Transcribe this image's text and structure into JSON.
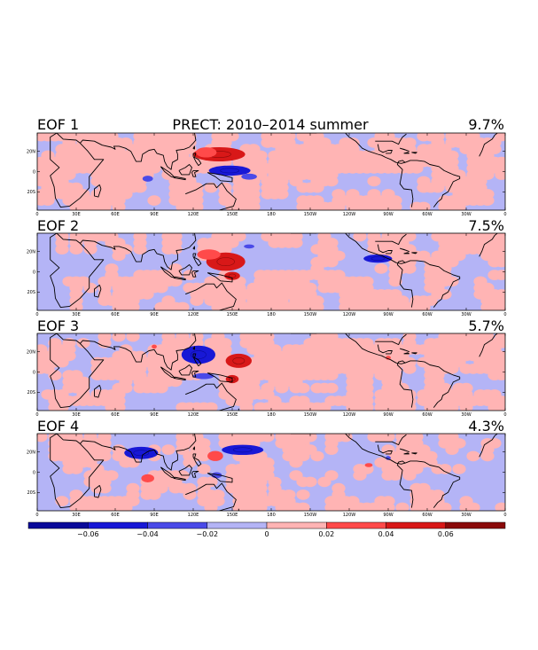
{
  "chart_data": {
    "type": "heatmap",
    "title": "PRECT: 2010–2014 summer",
    "colors": {
      "neg3": "#0a0a9a",
      "neg2": "#1818d6",
      "neg1": "#4a4ae8",
      "neg0": "#b4b4f6",
      "pos0": "#ffb4b4",
      "pos1": "#ff4a4a",
      "pos2": "#d81818",
      "pos3": "#8a0a0a",
      "coast": "#000000"
    },
    "lon_ticks": [
      "0",
      "30E",
      "60E",
      "90E",
      "120E",
      "150E",
      "180",
      "150W",
      "120W",
      "90W",
      "60W",
      "30W",
      "0"
    ],
    "lat_ticks": [
      "20N",
      "0",
      "20S"
    ],
    "panels": [
      {
        "label": "EOF 1",
        "variance": "9.7%",
        "anomalies": [
          {
            "sign": "pos",
            "level": 2,
            "lon": 140,
            "lat": 17,
            "rlon": 20,
            "rlat": 7
          },
          {
            "sign": "pos",
            "level": 1,
            "lon": 130,
            "lat": 19,
            "rlon": 8,
            "rlat": 5
          },
          {
            "sign": "neg",
            "level": 2,
            "lon": 148,
            "lat": 1,
            "rlon": 16,
            "rlat": 5
          },
          {
            "sign": "neg",
            "level": 1,
            "lon": 163,
            "lat": -5,
            "rlon": 6,
            "rlat": 3
          },
          {
            "sign": "neg",
            "level": 1,
            "lon": 85,
            "lat": -7,
            "rlon": 4,
            "rlat": 3
          }
        ]
      },
      {
        "label": "EOF 2",
        "variance": "7.5%",
        "anomalies": [
          {
            "sign": "pos",
            "level": 2,
            "lon": 145,
            "lat": 10,
            "rlon": 15,
            "rlat": 9
          },
          {
            "sign": "pos",
            "level": 1,
            "lon": 132,
            "lat": 17,
            "rlon": 9,
            "rlat": 5
          },
          {
            "sign": "pos",
            "level": 2,
            "lon": 150,
            "lat": -4,
            "rlon": 6,
            "rlat": 4
          },
          {
            "sign": "neg",
            "level": 2,
            "lon": 262,
            "lat": 13,
            "rlon": 11,
            "rlat": 4
          },
          {
            "sign": "neg",
            "level": 1,
            "lon": 163,
            "lat": 25,
            "rlon": 4,
            "rlat": 2
          }
        ]
      },
      {
        "label": "EOF 3",
        "variance": "5.7%",
        "anomalies": [
          {
            "sign": "neg",
            "level": 2,
            "lon": 124,
            "lat": 17,
            "rlon": 13,
            "rlat": 9
          },
          {
            "sign": "neg",
            "level": 1,
            "lon": 128,
            "lat": -4,
            "rlon": 8,
            "rlat": 3
          },
          {
            "sign": "pos",
            "level": 2,
            "lon": 155,
            "lat": 11,
            "rlon": 10,
            "rlat": 7
          },
          {
            "sign": "pos",
            "level": 2,
            "lon": 150,
            "lat": -7,
            "rlon": 5,
            "rlat": 4
          },
          {
            "sign": "pos",
            "level": 1,
            "lon": 90,
            "lat": 25,
            "rlon": 2,
            "rlat": 2
          },
          {
            "sign": "pos",
            "level": 1,
            "lon": 270,
            "lat": 14,
            "rlon": 2,
            "rlat": 2
          }
        ]
      },
      {
        "label": "EOF 4",
        "variance": "4.3%",
        "anomalies": [
          {
            "sign": "neg",
            "level": 2,
            "lon": 158,
            "lat": 22,
            "rlon": 16,
            "rlat": 5
          },
          {
            "sign": "neg",
            "level": 2,
            "lon": 80,
            "lat": 19,
            "rlon": 13,
            "rlat": 6
          },
          {
            "sign": "pos",
            "level": 1,
            "lon": 137,
            "lat": 16,
            "rlon": 6,
            "rlat": 5
          },
          {
            "sign": "pos",
            "level": 1,
            "lon": 85,
            "lat": -6,
            "rlon": 5,
            "rlat": 4
          },
          {
            "sign": "neg",
            "level": 1,
            "lon": 138,
            "lat": -3,
            "rlon": 4,
            "rlat": 3
          },
          {
            "sign": "pos",
            "level": 1,
            "lon": 255,
            "lat": 7,
            "rlon": 3,
            "rlat": 2
          },
          {
            "sign": "neg",
            "level": 1,
            "lon": 270,
            "lat": 14,
            "rlon": 2,
            "rlat": 2
          }
        ]
      }
    ],
    "colorbar": {
      "min": -0.08,
      "max": 0.08,
      "boundaries": [
        -0.08,
        -0.06,
        -0.04,
        -0.02,
        0,
        0.02,
        0.04,
        0.06,
        0.08
      ],
      "labels": [
        "−0.06",
        "−0.04",
        "−0.02",
        "0",
        "0.02",
        "0.04",
        "0.06"
      ],
      "label_values": [
        -0.06,
        -0.04,
        -0.02,
        0,
        0.02,
        0.04,
        0.06
      ]
    }
  }
}
